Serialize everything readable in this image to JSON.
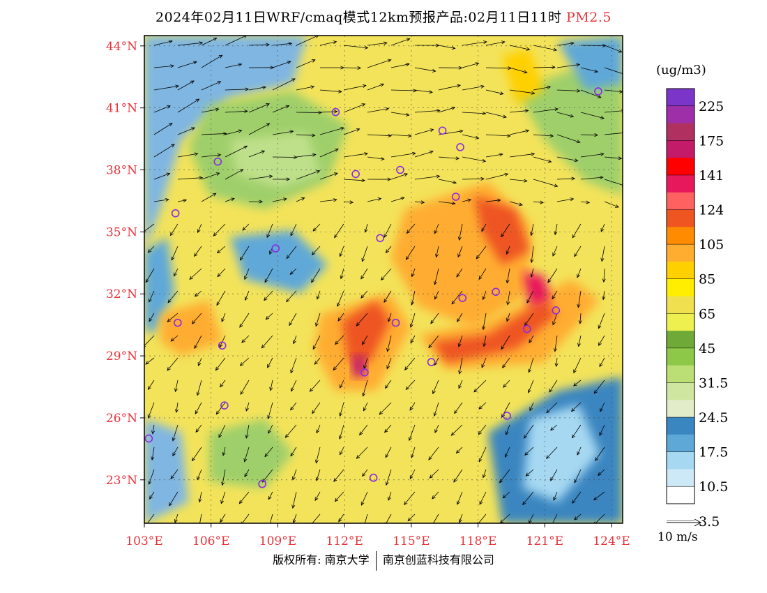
{
  "title": {
    "main": "2024年02月11日WRF/cmaq模式12km预报产品:02月11日11时",
    "pollutant": "PM2.5",
    "pollutant_color": "#e8333a"
  },
  "axes": {
    "lat_labels": [
      "44°N",
      "41°N",
      "38°N",
      "35°N",
      "32°N",
      "29°N",
      "26°N",
      "23°N"
    ],
    "lat_values": [
      44,
      41,
      38,
      35,
      32,
      29,
      26,
      23
    ],
    "lon_labels": [
      "103°E",
      "106°E",
      "109°E",
      "112°E",
      "115°E",
      "118°E",
      "121°E",
      "124°E"
    ],
    "lon_values": [
      103,
      106,
      109,
      112,
      115,
      118,
      121,
      124
    ],
    "lat_range": [
      20.9,
      44.5
    ],
    "lon_range": [
      103,
      124.5
    ],
    "label_color": "#e8333a"
  },
  "colorbar": {
    "unit": "(ug/m3)",
    "labels": [
      "225",
      "175",
      "141",
      "124",
      "105",
      "85",
      "65",
      "45",
      "31.5",
      "24.5",
      "17.5",
      "10.5",
      "3.5"
    ],
    "colors_top_to_bottom": [
      "#7b35c8",
      "#9e2fa8",
      "#b03060",
      "#c41a6a",
      "#ff0000",
      "#e8185c",
      "#ff6060",
      "#ee5520",
      "#ff8c00",
      "#ffad30",
      "#ffd000",
      "#ffee00",
      "#f0e050",
      "#eef050",
      "#6faa38",
      "#8dc848",
      "#bcdf75",
      "#cfe6a0",
      "#e2ecc8",
      "#3a86c0",
      "#5ea8d8",
      "#a6d8f2",
      "#cde9f8",
      "#ffffff"
    ]
  },
  "wind_reference": {
    "label": "10 m/s"
  },
  "cities": [
    {
      "lon": 103.2,
      "lat": 25.0
    },
    {
      "lon": 104.4,
      "lat": 35.9
    },
    {
      "lon": 104.5,
      "lat": 30.6
    },
    {
      "lon": 106.6,
      "lat": 26.6
    },
    {
      "lon": 106.5,
      "lat": 29.5
    },
    {
      "lon": 106.3,
      "lat": 38.4
    },
    {
      "lon": 108.3,
      "lat": 22.8
    },
    {
      "lon": 108.9,
      "lat": 34.2
    },
    {
      "lon": 111.6,
      "lat": 40.8
    },
    {
      "lon": 112.5,
      "lat": 37.8
    },
    {
      "lon": 112.9,
      "lat": 28.2
    },
    {
      "lon": 113.6,
      "lat": 34.7
    },
    {
      "lon": 114.3,
      "lat": 30.6
    },
    {
      "lon": 113.3,
      "lat": 23.1
    },
    {
      "lon": 114.5,
      "lat": 38.0
    },
    {
      "lon": 116.4,
      "lat": 39.9
    },
    {
      "lon": 117.2,
      "lat": 39.1
    },
    {
      "lon": 115.9,
      "lat": 28.7
    },
    {
      "lon": 117.0,
      "lat": 36.7
    },
    {
      "lon": 117.3,
      "lat": 31.8
    },
    {
      "lon": 118.8,
      "lat": 32.1
    },
    {
      "lon": 120.2,
      "lat": 30.3
    },
    {
      "lon": 119.3,
      "lat": 26.1
    },
    {
      "lon": 121.5,
      "lat": 31.2
    },
    {
      "lon": 123.4,
      "lat": 41.8
    }
  ],
  "copyright": {
    "left": "版权所有: 南京大学",
    "right": "南京创蓝科技有限公司"
  }
}
